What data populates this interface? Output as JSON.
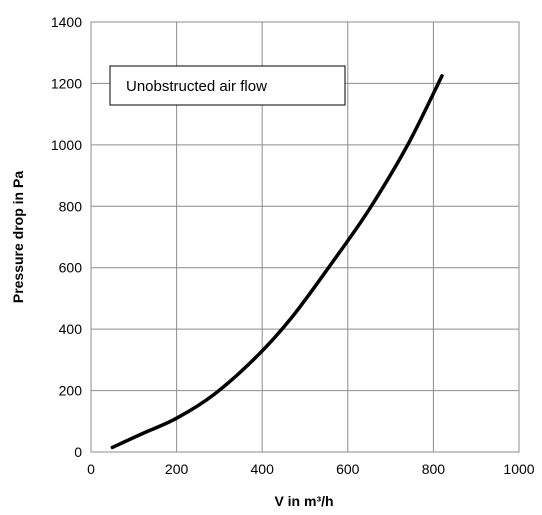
{
  "chart_data": {
    "type": "line",
    "title": "",
    "xlabel": "V in m³/h",
    "ylabel": "Pressure drop in Pa",
    "xlim": [
      0,
      1000
    ],
    "ylim": [
      0,
      1400
    ],
    "x_ticks": [
      0,
      200,
      400,
      600,
      800,
      1000
    ],
    "y_ticks": [
      0,
      200,
      400,
      600,
      800,
      1000,
      1200,
      1400
    ],
    "x_tick_labels": [
      "0",
      "200",
      "400",
      "600",
      "800",
      "1000"
    ],
    "y_tick_labels": [
      "0",
      "200",
      "400",
      "600",
      "800",
      "1000",
      "1200",
      "1400"
    ],
    "grid": true,
    "legend": "none",
    "annotation": "Unobstructed air flow",
    "series": [
      {
        "color": "#000000",
        "x": [
          50,
          120,
          200,
          290,
          390,
          470,
          560,
          650,
          740,
          820
        ],
        "y": [
          15,
          60,
          110,
          190,
          315,
          440,
          610,
          790,
          1000,
          1225
        ]
      }
    ]
  }
}
